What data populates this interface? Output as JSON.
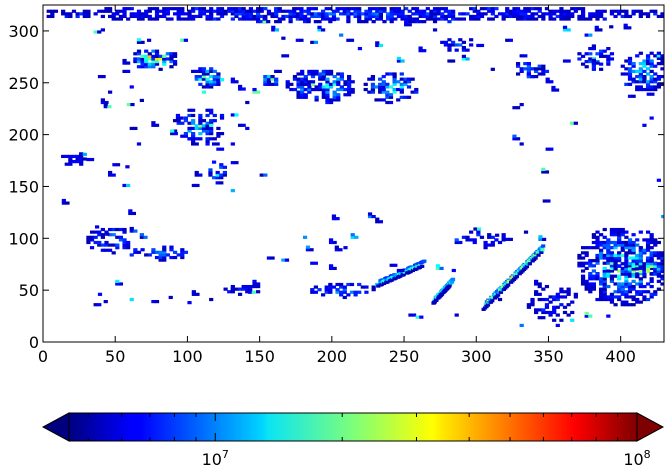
{
  "chart_data": {
    "type": "heatmap",
    "x_ticks": [
      "0",
      "50",
      "100",
      "150",
      "200",
      "250",
      "300",
      "350",
      "400"
    ],
    "y_ticks": [
      "0",
      "50",
      "100",
      "150",
      "200",
      "250",
      "300"
    ],
    "xlim": [
      0,
      430
    ],
    "ylim": [
      0,
      325
    ],
    "color_scale": "log",
    "colormap": "jet",
    "colorbar": {
      "orientation": "horizontal",
      "placement": "bottom",
      "extend": "both",
      "range": [
        4500000,
        100000000
      ],
      "tick_values": [
        10000000,
        100000000
      ],
      "tick_base": [
        "10",
        "10"
      ],
      "tick_exponent": [
        "7",
        "8"
      ]
    },
    "features": [
      {
        "x": [
          0,
          430
        ],
        "y": [
          308,
          323
        ],
        "level": 0.15,
        "spacing": 2.5,
        "density": 0.82
      },
      {
        "x": [
          60,
          92
        ],
        "y": [
          262,
          282
        ],
        "level": 0.7,
        "spacing": 2.5,
        "density": 0.85
      },
      {
        "x": [
          100,
          125
        ],
        "y": [
          245,
          265
        ],
        "level": 0.45,
        "spacing": 2.5,
        "density": 0.6
      },
      {
        "x": [
          150,
          162
        ],
        "y": [
          245,
          258
        ],
        "level": 0.5,
        "spacing": 2.5,
        "density": 0.7
      },
      {
        "x": [
          168,
          215
        ],
        "y": [
          230,
          262
        ],
        "level": 0.5,
        "spacing": 2.5,
        "density": 0.7
      },
      {
        "x": [
          222,
          258
        ],
        "y": [
          230,
          260
        ],
        "level": 0.4,
        "spacing": 2.5,
        "density": 0.6
      },
      {
        "x": [
          270,
          300
        ],
        "y": [
          278,
          292
        ],
        "level": 0.15,
        "spacing": 2.5,
        "density": 0.55
      },
      {
        "x": [
          325,
          350
        ],
        "y": [
          255,
          270
        ],
        "level": 0.2,
        "spacing": 2.5,
        "density": 0.6
      },
      {
        "x": [
          370,
          395
        ],
        "y": [
          262,
          285
        ],
        "level": 0.25,
        "spacing": 2.5,
        "density": 0.6
      },
      {
        "x": [
          400,
          430
        ],
        "y": [
          240,
          280
        ],
        "level": 0.35,
        "spacing": 2.5,
        "density": 0.65
      },
      {
        "x": [
          90,
          125
        ],
        "y": [
          190,
          225
        ],
        "level": 0.35,
        "spacing": 2.5,
        "density": 0.5
      },
      {
        "x": [
          112,
          125
        ],
        "y": [
          150,
          175
        ],
        "level": 0.35,
        "spacing": 2.5,
        "density": 0.5
      },
      {
        "x": [
          10,
          30
        ],
        "y": [
          168,
          182
        ],
        "level": 0.1,
        "spacing": 2.5,
        "density": 0.6
      },
      {
        "x": [
          30,
          60
        ],
        "y": [
          85,
          110
        ],
        "level": 0.25,
        "spacing": 2.5,
        "density": 0.6
      },
      {
        "x": [
          60,
          100
        ],
        "y": [
          78,
          92
        ],
        "level": 0.25,
        "spacing": 2.5,
        "density": 0.65
      },
      {
        "x": [
          370,
          430
        ],
        "y": [
          35,
          110
        ],
        "level": 0.4,
        "spacing": 2.5,
        "density": 0.7
      },
      {
        "x": [
          395,
          430
        ],
        "y": [
          62,
          78
        ],
        "level": 0.72,
        "spacing": 2.5,
        "density": 0.85
      },
      {
        "x": [
          185,
          230
        ],
        "y": [
          42,
          55
        ],
        "level": 0.25,
        "spacing": 2.5,
        "density": 0.6
      },
      {
        "x": [
          335,
          370
        ],
        "y": [
          20,
          55
        ],
        "level": 0.1,
        "spacing": 2.5,
        "density": 0.4
      },
      {
        "x": [
          125,
          150
        ],
        "y": [
          45,
          55
        ],
        "level": 0.1,
        "spacing": 2.5,
        "density": 0.5
      },
      {
        "x": [
          290,
          320
        ],
        "y": [
          90,
          110
        ],
        "level": 0.15,
        "spacing": 2.5,
        "density": 0.5
      }
    ],
    "ridges": [
      {
        "from": [
          305,
          35
        ],
        "to": [
          345,
          90
        ],
        "level": 0.45,
        "width": 9
      },
      {
        "from": [
          230,
          55
        ],
        "to": [
          262,
          75
        ],
        "level": 0.3,
        "width": 6
      },
      {
        "from": [
          270,
          40
        ],
        "to": [
          282,
          58
        ],
        "level": 0.35,
        "width": 7
      }
    ],
    "scatter": [
      [
        40,
        300
      ],
      [
        55,
        268
      ],
      [
        65,
        288
      ],
      [
        72,
        290
      ],
      [
        35,
        298
      ],
      [
        38,
        255
      ],
      [
        45,
        240
      ],
      [
        55,
        260
      ],
      [
        60,
        245
      ],
      [
        58,
        228
      ],
      [
        67,
        232
      ],
      [
        40,
        230
      ],
      [
        42,
        226
      ],
      [
        60,
        205
      ],
      [
        65,
        190
      ],
      [
        75,
        208
      ],
      [
        88,
        200
      ],
      [
        92,
        215
      ],
      [
        100,
        195
      ],
      [
        110,
        240
      ],
      [
        120,
        252
      ],
      [
        130,
        250
      ],
      [
        135,
        243
      ],
      [
        140,
        230
      ],
      [
        145,
        240
      ],
      [
        130,
        218
      ],
      [
        135,
        208
      ],
      [
        140,
        205
      ],
      [
        160,
        260
      ],
      [
        165,
        275
      ],
      [
        175,
        290
      ],
      [
        205,
        295
      ],
      [
        230,
        285
      ],
      [
        245,
        270
      ],
      [
        260,
        280
      ],
      [
        280,
        270
      ],
      [
        300,
        285
      ],
      [
        320,
        290
      ],
      [
        330,
        275
      ],
      [
        335,
        255
      ],
      [
        348,
        250
      ],
      [
        360,
        270
      ],
      [
        352,
        242
      ],
      [
        330,
        228
      ],
      [
        325,
        225
      ],
      [
        310,
        262
      ],
      [
        290,
        272
      ],
      [
        380,
        268
      ],
      [
        405,
        236
      ],
      [
        418,
        238
      ],
      [
        425,
        275
      ],
      [
        105,
        160
      ],
      [
        103,
        150
      ],
      [
        45,
        160
      ],
      [
        48,
        170
      ],
      [
        57,
        168
      ],
      [
        55,
        150
      ],
      [
        13,
        133
      ],
      [
        130,
        145
      ],
      [
        130,
        172
      ],
      [
        120,
        185
      ],
      [
        117,
        190
      ],
      [
        325,
        195
      ],
      [
        330,
        190
      ],
      [
        348,
        185
      ],
      [
        345,
        163
      ],
      [
        346,
        135
      ],
      [
        365,
        210
      ],
      [
        415,
        208
      ],
      [
        430,
        190
      ],
      [
        420,
        215
      ],
      [
        59,
        123
      ],
      [
        115,
        208
      ],
      [
        120,
        200
      ],
      [
        150,
        160
      ],
      [
        130,
        190
      ],
      [
        200,
        118
      ],
      [
        225,
        120
      ],
      [
        230,
        115
      ],
      [
        155,
        80
      ],
      [
        165,
        78
      ],
      [
        180,
        100
      ],
      [
        182,
        88
      ],
      [
        185,
        75
      ],
      [
        202,
        88
      ],
      [
        198,
        95
      ],
      [
        208,
        90
      ],
      [
        213,
        100
      ],
      [
        198,
        70
      ],
      [
        240,
        73
      ],
      [
        245,
        68
      ],
      [
        285,
        95
      ],
      [
        298,
        108
      ],
      [
        313,
        102
      ],
      [
        320,
        98
      ],
      [
        343,
        98
      ],
      [
        333,
        105
      ],
      [
        340,
        55
      ],
      [
        283,
        68
      ],
      [
        272,
        70
      ],
      [
        285,
        25
      ],
      [
        330,
        15
      ],
      [
        355,
        15
      ],
      [
        365,
        20
      ],
      [
        375,
        24
      ],
      [
        390,
        24
      ],
      [
        315,
        40
      ],
      [
        253,
        25
      ],
      [
        258,
        23
      ],
      [
        35,
        35
      ],
      [
        42,
        38
      ],
      [
        60,
        40
      ],
      [
        75,
        38
      ],
      [
        87,
        42
      ],
      [
        103,
        45
      ],
      [
        115,
        40
      ],
      [
        100,
        37
      ],
      [
        130,
        50
      ],
      [
        142,
        47
      ],
      [
        145,
        55
      ],
      [
        50,
        55
      ],
      [
        38,
        45
      ],
      [
        43,
        103
      ],
      [
        60,
        106
      ],
      [
        67,
        100
      ],
      [
        36,
        110
      ],
      [
        95,
        290
      ],
      [
        152,
        308
      ],
      [
        158,
        300
      ],
      [
        165,
        292
      ],
      [
        250,
        305
      ],
      [
        270,
        300
      ],
      [
        360,
        300
      ],
      [
        375,
        295
      ],
      [
        382,
        300
      ],
      [
        392,
        303
      ],
      [
        402,
        302
      ],
      [
        190,
        300
      ],
      [
        200,
        310
      ],
      [
        210,
        290
      ],
      [
        218,
        282
      ],
      [
        185,
        288
      ],
      [
        425,
        155
      ],
      [
        428,
        120
      ],
      [
        30,
        175
      ],
      [
        25,
        180
      ]
    ]
  }
}
